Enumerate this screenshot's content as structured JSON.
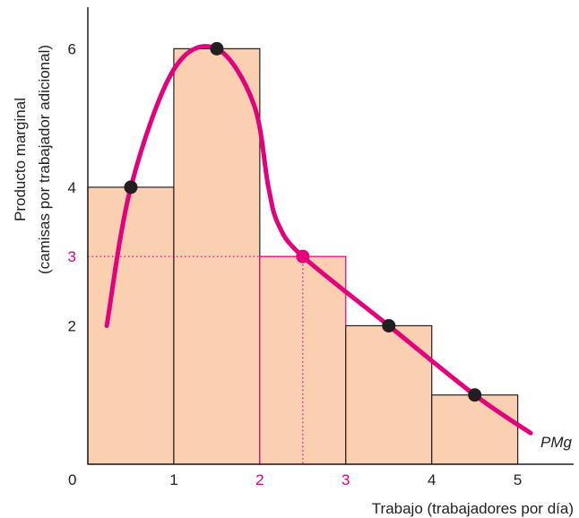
{
  "chart_data": {
    "type": "bar",
    "title": "",
    "xlabel": "Trabajo (trabajadores por día)",
    "ylabel_line1": "Producto marginal",
    "ylabel_line2": "(camisas por trabajador adicional)",
    "origin_label": "0",
    "xlim": [
      0,
      5.65
    ],
    "ylim": [
      0,
      6.6
    ],
    "x_ticks": [
      {
        "value": 1,
        "label": "1",
        "highlight": false
      },
      {
        "value": 2,
        "label": "2",
        "highlight": true
      },
      {
        "value": 3,
        "label": "3",
        "highlight": true
      },
      {
        "value": 4,
        "label": "4",
        "highlight": false
      },
      {
        "value": 5,
        "label": "5",
        "highlight": false
      }
    ],
    "y_ticks": [
      {
        "value": 2,
        "label": "2",
        "highlight": false
      },
      {
        "value": 3,
        "label": "3",
        "highlight": true
      },
      {
        "value": 4,
        "label": "4",
        "highlight": false
      },
      {
        "value": 6,
        "label": "6",
        "highlight": false
      }
    ],
    "bars": [
      {
        "x0": 0,
        "x1": 1,
        "value": 4,
        "highlight": false
      },
      {
        "x0": 1,
        "x1": 2,
        "value": 6,
        "highlight": false
      },
      {
        "x0": 2,
        "x1": 3,
        "value": 3,
        "highlight": true
      },
      {
        "x0": 3,
        "x1": 4,
        "value": 2,
        "highlight": false
      },
      {
        "x0": 4,
        "x1": 5,
        "value": 1,
        "highlight": false
      }
    ],
    "points": [
      {
        "x": 0.5,
        "y": 4,
        "highlight": false
      },
      {
        "x": 1.5,
        "y": 6,
        "highlight": false
      },
      {
        "x": 2.5,
        "y": 3,
        "highlight": true
      },
      {
        "x": 3.5,
        "y": 2,
        "highlight": false
      },
      {
        "x": 4.5,
        "y": 1,
        "highlight": false
      }
    ],
    "curve": {
      "name": "PMg",
      "points": [
        [
          0.22,
          2.0
        ],
        [
          0.5,
          4.0
        ],
        [
          1.0,
          5.7
        ],
        [
          1.5,
          6.0
        ],
        [
          1.93,
          5.2
        ],
        [
          2.1,
          4.0
        ],
        [
          2.22,
          3.45
        ],
        [
          2.5,
          3.0
        ],
        [
          3.5,
          2.0
        ],
        [
          4.5,
          1.0
        ],
        [
          5.15,
          0.45
        ]
      ]
    },
    "reference_lines": [
      {
        "from": [
          0,
          3
        ],
        "to": [
          2.5,
          3
        ]
      },
      {
        "from": [
          2.5,
          3
        ],
        "to": [
          2.5,
          0
        ]
      }
    ],
    "colors": {
      "bar_fill": "#fbd0b0",
      "bar_edge": "#231f20",
      "highlight": "#e4007c",
      "curve": "#e4007c",
      "point": "#231f20",
      "axis": "#231f20"
    }
  }
}
